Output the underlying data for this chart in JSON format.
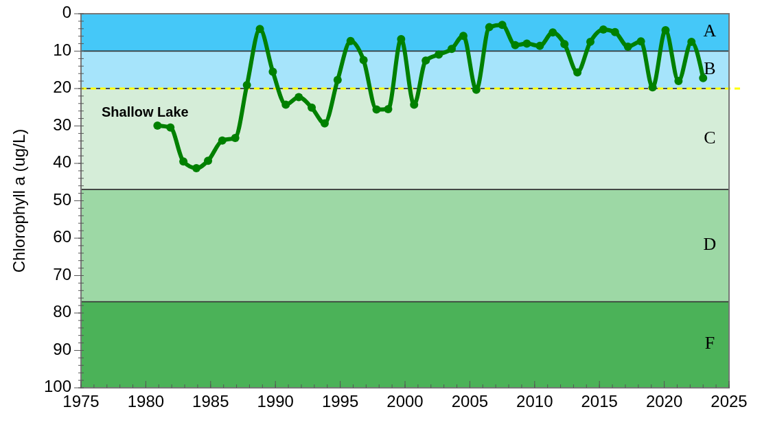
{
  "chart_data": {
    "type": "line",
    "ylabel": "Chlorophyll a (ug/L)",
    "annotations": [
      "Shallow Lake"
    ],
    "x": [
      1980.9,
      1981.9,
      1982.9,
      1983.9,
      1984.8,
      1985.9,
      1986.9,
      1987.8,
      1988.8,
      1989.8,
      1990.8,
      1991.8,
      1992.8,
      1993.8,
      1994.8,
      1995.8,
      1996.8,
      1997.8,
      1998.7,
      1999.7,
      2000.7,
      2001.6,
      2002.6,
      2003.6,
      2004.5,
      2005.5,
      2006.5,
      2007.5,
      2008.5,
      2009.4,
      2010.4,
      2011.4,
      2012.3,
      2013.3,
      2014.3,
      2015.3,
      2016.2,
      2017.2,
      2018.2,
      2019.1,
      2020.1,
      2021.1,
      2022.1,
      2023.0
    ],
    "series": [
      {
        "color": "#008000",
        "values": [
          29.9,
          30.4,
          39.5,
          41.3,
          39.3,
          33.9,
          33.2,
          19.1,
          4.1,
          15.5,
          24.3,
          22.3,
          25.1,
          29.3,
          17.7,
          7.3,
          12.4,
          25.6,
          25.5,
          6.8,
          24.3,
          12.5,
          10.9,
          9.4,
          5.9,
          20.3,
          3.6,
          3.0,
          8.4,
          8.0,
          8.6,
          5.0,
          8.1,
          15.7,
          7.5,
          4.2,
          4.9,
          8.8,
          7.4,
          19.7,
          4.4,
          18.0,
          7.5,
          17.2
        ]
      }
    ],
    "xlim": [
      1975,
      2025
    ],
    "xticks": [
      1975,
      1980,
      1985,
      1990,
      1995,
      2000,
      2005,
      2010,
      2015,
      2020,
      2025
    ],
    "ylim": [
      100,
      0
    ],
    "yticks": [
      0,
      10,
      20,
      30,
      40,
      50,
      60,
      70,
      80,
      90,
      100
    ],
    "bands": [
      {
        "axis": "y",
        "from": 0,
        "to": 10,
        "label": "A",
        "color": "#45c8f8"
      },
      {
        "axis": "y",
        "from": 10,
        "to": 20,
        "label": "B",
        "color": "#a6e4fb"
      },
      {
        "axis": "y",
        "from": 20,
        "to": 47,
        "label": "C",
        "color": "#d5edd8"
      },
      {
        "axis": "y",
        "from": 47,
        "to": 77,
        "label": "D",
        "color": "#9dd8a5"
      },
      {
        "axis": "y",
        "from": 77,
        "to": 100,
        "label": "F",
        "color": "#4bb258"
      }
    ],
    "ref_lines": [
      {
        "axis": "y",
        "value": 20,
        "color": "#ffff00",
        "line_style": "dashed"
      }
    ],
    "marker": "circle",
    "grid": false
  }
}
